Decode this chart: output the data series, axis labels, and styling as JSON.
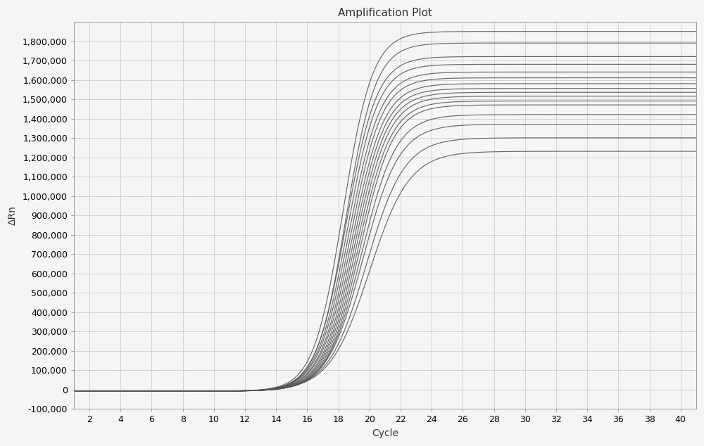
{
  "title": "Amplification Plot",
  "xlabel": "Cycle",
  "ylabel": "ΔRn",
  "xlim": [
    1,
    41
  ],
  "ylim": [
    -100000,
    1900000
  ],
  "xticks": [
    2,
    4,
    6,
    8,
    10,
    12,
    14,
    16,
    18,
    20,
    22,
    24,
    26,
    28,
    30,
    32,
    34,
    36,
    38,
    40
  ],
  "yticks": [
    -100000,
    0,
    100000,
    200000,
    300000,
    400000,
    500000,
    600000,
    700000,
    800000,
    900000,
    1000000,
    1100000,
    1200000,
    1300000,
    1400000,
    1500000,
    1600000,
    1700000,
    1800000
  ],
  "ytick_labels": [
    "-100,000",
    "0",
    "100,000",
    "200,000",
    "300,000",
    "400,000",
    "500,000",
    "600,000",
    "700,000",
    "800,000",
    "900,000",
    "1,000,000",
    "1,100,000",
    "1,200,000",
    "1,300,000",
    "1,400,000",
    "1,500,000",
    "1,600,000",
    "1,700,000",
    "1,800,000"
  ],
  "background_color": "#f5f5f5",
  "grid_color": "#cccccc",
  "line_color": "#555555",
  "title_fontsize": 11,
  "axis_label_fontsize": 10,
  "tick_fontsize": 9,
  "curves": [
    {
      "L": 1860000,
      "k": 1.05,
      "x0": 18.3,
      "baseline": -8000
    },
    {
      "L": 1800000,
      "k": 1.05,
      "x0": 18.5,
      "baseline": -8000
    },
    {
      "L": 1730000,
      "k": 1.02,
      "x0": 18.5,
      "baseline": -8000
    },
    {
      "L": 1690000,
      "k": 1.02,
      "x0": 18.6,
      "baseline": -8000
    },
    {
      "L": 1650000,
      "k": 1.0,
      "x0": 18.7,
      "baseline": -8000
    },
    {
      "L": 1620000,
      "k": 1.0,
      "x0": 18.8,
      "baseline": -8000
    },
    {
      "L": 1590000,
      "k": 0.98,
      "x0": 18.9,
      "baseline": -8000
    },
    {
      "L": 1565000,
      "k": 0.98,
      "x0": 19.0,
      "baseline": -8000
    },
    {
      "L": 1545000,
      "k": 0.97,
      "x0": 19.1,
      "baseline": -8000
    },
    {
      "L": 1525000,
      "k": 0.96,
      "x0": 19.2,
      "baseline": -8000
    },
    {
      "L": 1500000,
      "k": 0.95,
      "x0": 19.3,
      "baseline": -8000
    },
    {
      "L": 1480000,
      "k": 0.94,
      "x0": 19.4,
      "baseline": -8000
    },
    {
      "L": 1430000,
      "k": 0.9,
      "x0": 19.5,
      "baseline": -8000
    },
    {
      "L": 1380000,
      "k": 0.86,
      "x0": 19.6,
      "baseline": -8000
    },
    {
      "L": 1310000,
      "k": 0.82,
      "x0": 19.8,
      "baseline": -8000
    },
    {
      "L": 1240000,
      "k": 0.78,
      "x0": 20.0,
      "baseline": -8000
    }
  ]
}
